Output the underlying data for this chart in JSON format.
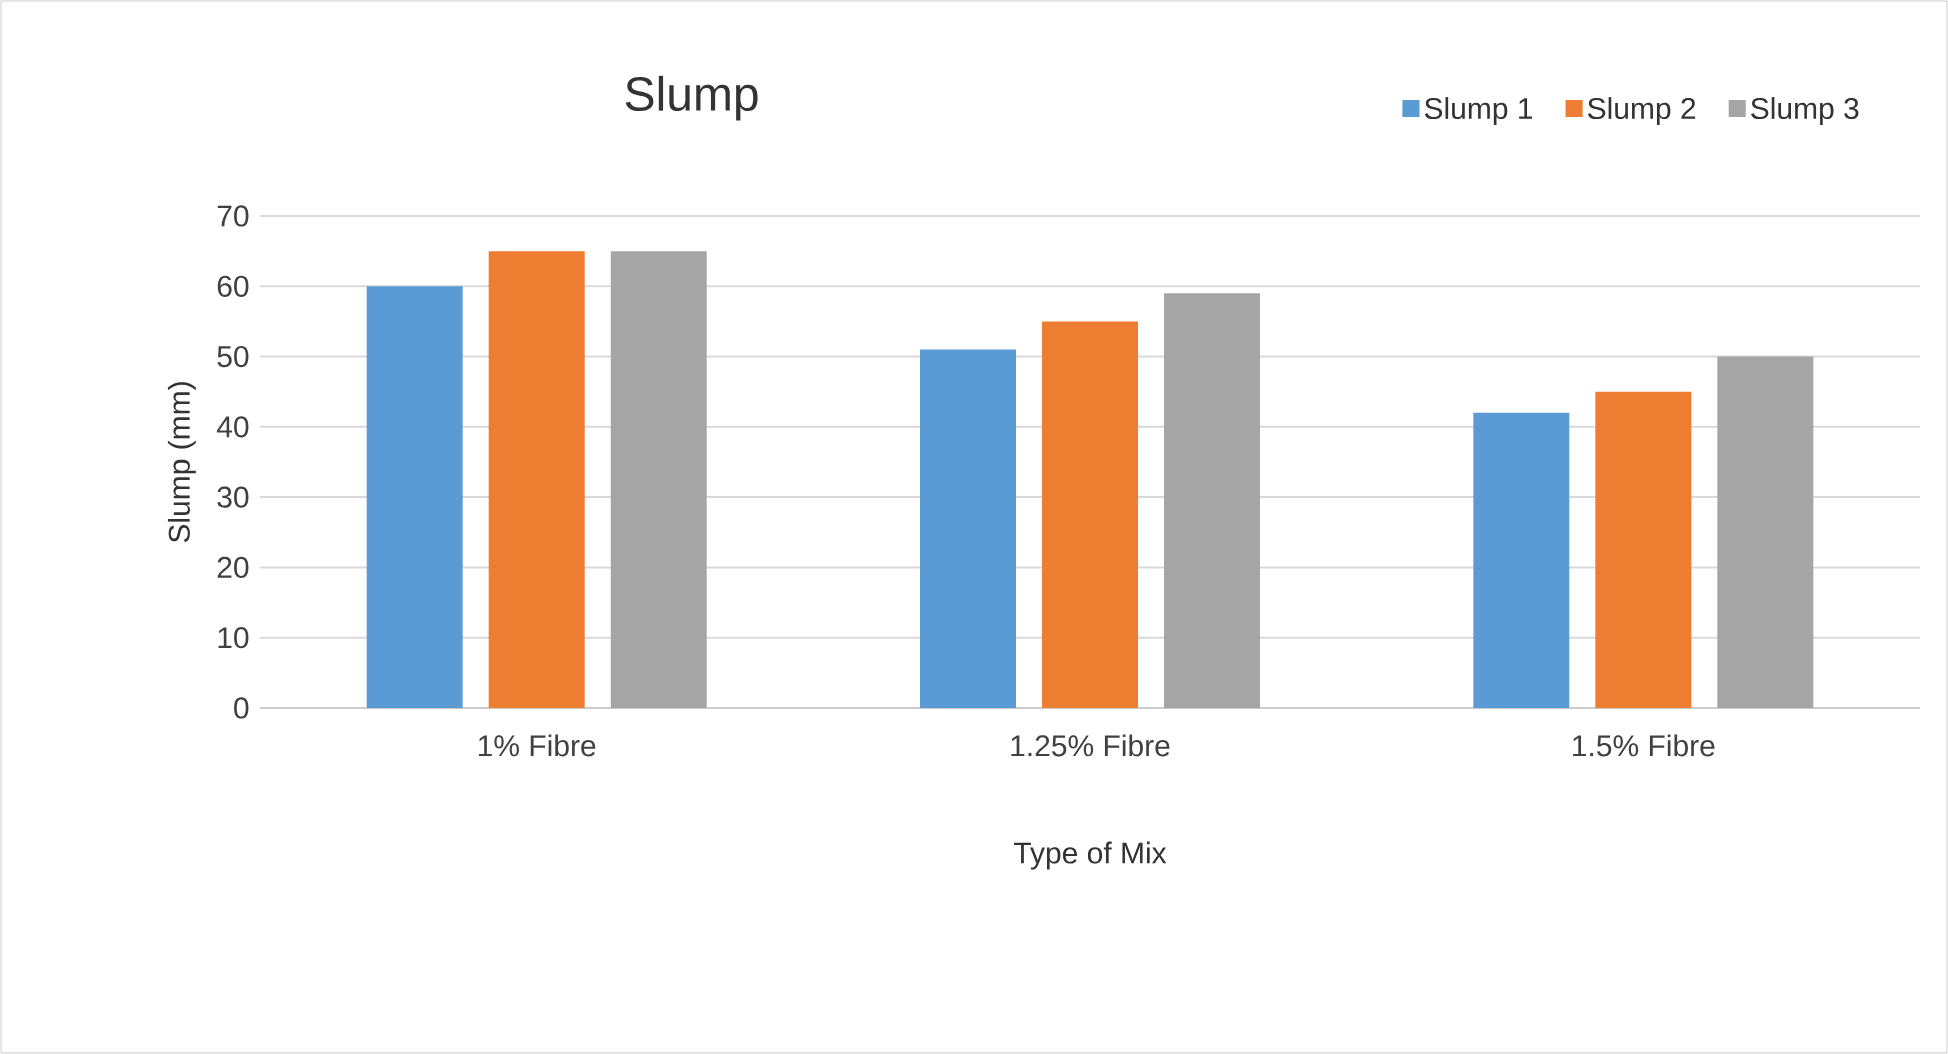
{
  "chart_data": {
    "type": "bar",
    "title": "Slump",
    "xlabel": "Type of Mix",
    "ylabel": "Slump (mm)",
    "categories": [
      "1% Fibre",
      "1.25% Fibre",
      "1.5% Fibre"
    ],
    "series": [
      {
        "name": "Slump 1",
        "color": "#5b9bd5",
        "values": [
          60,
          51,
          42
        ]
      },
      {
        "name": "Slump 2",
        "color": "#ed7d31",
        "values": [
          65,
          55,
          45
        ]
      },
      {
        "name": "Slump 3",
        "color": "#a5a5a5",
        "values": [
          65,
          59,
          50
        ]
      }
    ],
    "ylim": [
      0,
      70
    ],
    "yticks": [
      0,
      10,
      20,
      30,
      40,
      50,
      60,
      70
    ],
    "grid": "y",
    "legend": "top right"
  }
}
